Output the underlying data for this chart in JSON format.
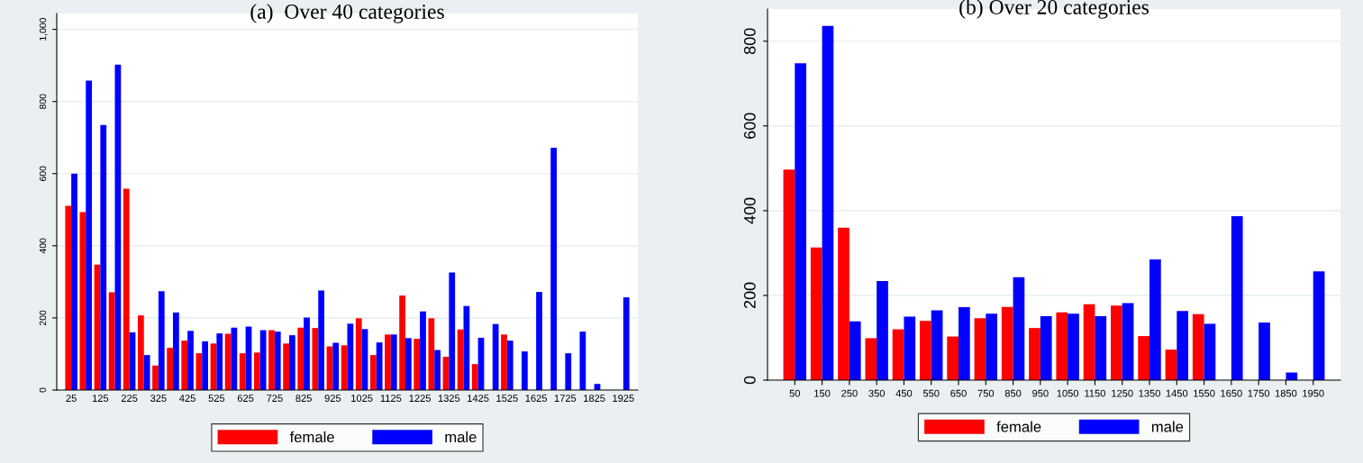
{
  "chart_data": [
    {
      "type": "bar",
      "title": "(a)  Over 40 categories",
      "categories": [
        "25",
        null,
        "125",
        null,
        "225",
        null,
        "325",
        null,
        "425",
        null,
        "525",
        null,
        "625",
        null,
        "725",
        null,
        "825",
        null,
        "925",
        null,
        "1025",
        null,
        "1125",
        null,
        "1225",
        null,
        "1325",
        null,
        "1425",
        null,
        "1525",
        null,
        "1625",
        null,
        "1725",
        null,
        "1825",
        null,
        "1925"
      ],
      "series": [
        {
          "name": "female",
          "color": "#ff0000",
          "values": [
            511,
            493,
            348,
            271,
            558,
            207,
            68,
            117,
            137,
            102,
            129,
            156,
            102,
            104,
            166,
            129,
            173,
            172,
            121,
            124,
            199,
            97,
            154,
            262,
            142,
            199,
            92,
            168,
            72,
            null,
            154,
            null,
            null,
            null,
            null,
            null,
            null,
            null,
            null
          ]
        },
        {
          "name": "male",
          "color": "#0000ff",
          "values": [
            600,
            858,
            735,
            902,
            160,
            97,
            274,
            215,
            164,
            135,
            157,
            173,
            176,
            166,
            162,
            152,
            201,
            276,
            131,
            184,
            169,
            132,
            154,
            144,
            218,
            111,
            326,
            233,
            145,
            183,
            137,
            107,
            272,
            672,
            102,
            162,
            17,
            null,
            257
          ]
        }
      ],
      "ylim": [
        0,
        1044
      ],
      "yticks": [
        0,
        200,
        400,
        600,
        800,
        {
          "value": 1000,
          "label": "1,000"
        }
      ],
      "grid": "y",
      "legend": "bottom"
    },
    {
      "type": "bar",
      "title": "(b) Over 20 categories",
      "categories": [
        "50",
        "150",
        "250",
        "350",
        "450",
        "550",
        "650",
        "750",
        "850",
        "950",
        "1050",
        "1150",
        "1250",
        "1350",
        "1450",
        "1550",
        "1650",
        "1750",
        "1850",
        "1950"
      ],
      "series": [
        {
          "name": "female",
          "color": "#ff0000",
          "values": [
            497,
            313,
            360,
            99,
            120,
            140,
            103,
            146,
            173,
            123,
            160,
            179,
            176,
            104,
            72,
            156,
            null,
            null,
            null,
            null
          ]
        },
        {
          "name": "male",
          "color": "#0000ff",
          "values": [
            748,
            836,
            139,
            234,
            150,
            165,
            172,
            157,
            243,
            151,
            157,
            151,
            182,
            285,
            163,
            133,
            387,
            136,
            18,
            257
          ]
        }
      ],
      "ylim": [
        0,
        876
      ],
      "yticks": [
        0,
        200,
        400,
        600,
        800
      ],
      "grid": "y",
      "legend": "bottom"
    }
  ]
}
